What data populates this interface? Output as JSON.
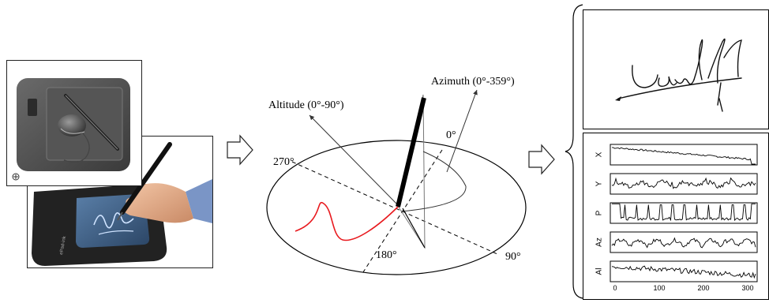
{
  "figure": {
    "devices": {
      "tablet_panel": "tablet with pen and mouse",
      "signature_pad": "handheld pen signing on LCD pad",
      "pad_brand": "ePad-ink"
    },
    "angles": {
      "altitude_label": "Altitude (0°-90°)",
      "azimuth_label": "Azimuth (0°-359°)",
      "deg_0": "0°",
      "deg_90": "90°",
      "deg_180": "180°",
      "deg_270": "270°"
    },
    "signature_panel": {
      "description": "handwritten signature"
    },
    "signals_panel": {
      "channels": [
        "X",
        "Y",
        "P",
        "Az",
        "Al"
      ],
      "x_ticks": [
        "0",
        "100",
        "200",
        "300"
      ]
    },
    "colors": {
      "trajectory": "#e8191e",
      "ink": "#000000"
    }
  }
}
